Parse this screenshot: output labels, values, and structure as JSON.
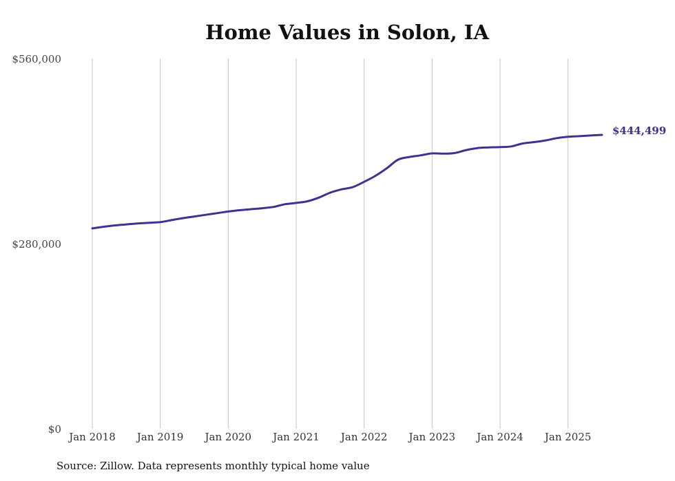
{
  "chart_data": {
    "type": "line",
    "title": "Home Values in Solon, IA",
    "source_note": "Source: Zillow. Data represents monthly typical home value",
    "ylim": [
      0,
      560000
    ],
    "yticks": [
      0,
      280000,
      560000
    ],
    "ytick_labels": [
      "$0",
      "$280,000",
      "$560,000"
    ],
    "xticks": [
      "2018-01",
      "2019-01",
      "2020-01",
      "2021-01",
      "2022-01",
      "2023-01",
      "2024-01",
      "2025-01"
    ],
    "xtick_labels": [
      "Jan 2018",
      "Jan 2019",
      "Jan 2020",
      "Jan 2021",
      "Jan 2022",
      "Jan 2023",
      "Jan 2024",
      "Jan 2025"
    ],
    "xlim": [
      "2018-01",
      "2025-07"
    ],
    "grid": "vertical",
    "series": [
      {
        "color": "#3b3491",
        "end_label": "$444,499",
        "points": [
          [
            "2018-01",
            303000
          ],
          [
            "2018-03",
            305500
          ],
          [
            "2018-05",
            307500
          ],
          [
            "2018-07",
            309000
          ],
          [
            "2018-09",
            310500
          ],
          [
            "2018-11",
            311500
          ],
          [
            "2019-01",
            312500
          ],
          [
            "2019-03",
            315500
          ],
          [
            "2019-05",
            318500
          ],
          [
            "2019-07",
            321000
          ],
          [
            "2019-09",
            323500
          ],
          [
            "2019-11",
            326000
          ],
          [
            "2020-01",
            328500
          ],
          [
            "2020-03",
            330500
          ],
          [
            "2020-05",
            332000
          ],
          [
            "2020-07",
            333500
          ],
          [
            "2020-09",
            335500
          ],
          [
            "2020-11",
            339500
          ],
          [
            "2021-01",
            341500
          ],
          [
            "2021-03",
            344000
          ],
          [
            "2021-05",
            349500
          ],
          [
            "2021-07",
            357000
          ],
          [
            "2021-09",
            362000
          ],
          [
            "2021-11",
            365500
          ],
          [
            "2022-01",
            373500
          ],
          [
            "2022-03",
            382500
          ],
          [
            "2022-05",
            394000
          ],
          [
            "2022-07",
            407000
          ],
          [
            "2022-09",
            411000
          ],
          [
            "2022-11",
            413500
          ],
          [
            "2023-01",
            416500
          ],
          [
            "2023-03",
            416000
          ],
          [
            "2023-05",
            417000
          ],
          [
            "2023-07",
            421500
          ],
          [
            "2023-09",
            424500
          ],
          [
            "2023-11",
            425500
          ],
          [
            "2024-01",
            426000
          ],
          [
            "2024-03",
            427000
          ],
          [
            "2024-05",
            431500
          ],
          [
            "2024-07",
            433500
          ],
          [
            "2024-09",
            436000
          ],
          [
            "2024-11",
            439500
          ],
          [
            "2025-01",
            441500
          ],
          [
            "2025-03",
            442500
          ],
          [
            "2025-05",
            443500
          ],
          [
            "2025-07",
            444499
          ]
        ]
      }
    ]
  }
}
